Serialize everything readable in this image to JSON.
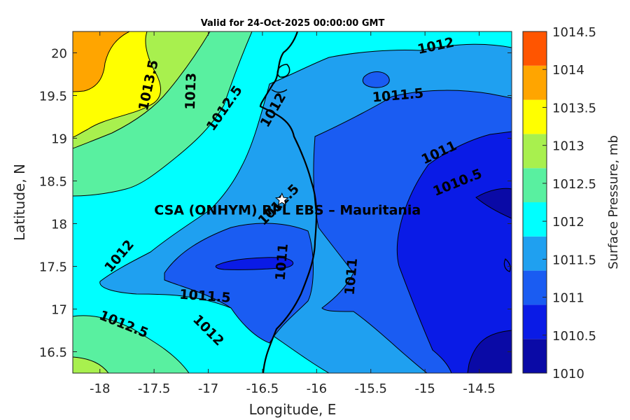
{
  "chart_data": {
    "type": "contour-map",
    "title": "Valid for 24-Oct-2025 00:00:00 GMT",
    "xlabel": "Longitude, E",
    "ylabel": "Latitude, N",
    "xlim": [
      -18.25,
      -14.2
    ],
    "ylim": [
      16.25,
      20.25
    ],
    "xticks": [
      {
        "value": -18,
        "label": "-18"
      },
      {
        "value": -17.5,
        "label": "-17.5"
      },
      {
        "value": -17,
        "label": "-17"
      },
      {
        "value": -16.5,
        "label": "-16.5"
      },
      {
        "value": -16,
        "label": "-16"
      },
      {
        "value": -15.5,
        "label": "-15.5"
      },
      {
        "value": -15,
        "label": "-15"
      },
      {
        "value": -14.5,
        "label": "-14.5"
      }
    ],
    "yticks": [
      {
        "value": 16.5,
        "label": "16.5"
      },
      {
        "value": 17,
        "label": "17"
      },
      {
        "value": 17.5,
        "label": "17.5"
      },
      {
        "value": 18,
        "label": "18"
      },
      {
        "value": 18.5,
        "label": "18.5"
      },
      {
        "value": 19,
        "label": "19"
      },
      {
        "value": 19.5,
        "label": "19.5"
      },
      {
        "value": 20,
        "label": "20"
      }
    ],
    "colorbar": {
      "label": "Surface Pressure, mb",
      "levels": [
        1010,
        1010.5,
        1011,
        1011.5,
        1012,
        1012.5,
        1013,
        1013.5,
        1014,
        1014.5
      ],
      "tick_labels": [
        "1010",
        "1010.5",
        "1011",
        "1011.5",
        "1012",
        "1012.5",
        "1013",
        "1013.5",
        "1014",
        "1014.5"
      ],
      "colors": [
        "#0a0aa6",
        "#0a1be6",
        "#1a5cf2",
        "#1fa0f0",
        "#00ffff",
        "#59f0a0",
        "#a8f04e",
        "#ffff00",
        "#ffa500",
        "#ff5500"
      ]
    },
    "contour_labels": [
      {
        "lon": -17.55,
        "lat": 19.62,
        "text": "1013.5",
        "rot": -78
      },
      {
        "lon": -17.16,
        "lat": 19.55,
        "text": "1013",
        "rot": -88
      },
      {
        "lon": -16.85,
        "lat": 19.35,
        "text": "1012.5",
        "rot": -55
      },
      {
        "lon": -16.4,
        "lat": 19.33,
        "text": "1012",
        "rot": -60
      },
      {
        "lon": -14.9,
        "lat": 20.08,
        "text": "1012",
        "rot": -12
      },
      {
        "lon": -15.25,
        "lat": 19.5,
        "text": "1011.5",
        "rot": -5
      },
      {
        "lon": -14.87,
        "lat": 18.83,
        "text": "1011",
        "rot": -25
      },
      {
        "lon": -14.7,
        "lat": 18.48,
        "text": "1010.5",
        "rot": -22
      },
      {
        "lon": -17.82,
        "lat": 17.62,
        "text": "1012",
        "rot": -50
      },
      {
        "lon": -16.35,
        "lat": 18.22,
        "text": "1011.5",
        "rot": -45
      },
      {
        "lon": -16.32,
        "lat": 17.55,
        "text": "1011",
        "rot": -85
      },
      {
        "lon": -15.68,
        "lat": 17.38,
        "text": "1011",
        "rot": -85
      },
      {
        "lon": -17.03,
        "lat": 17.15,
        "text": "1011.5",
        "rot": 4
      },
      {
        "lon": -17.78,
        "lat": 16.82,
        "text": "1012.5",
        "rot": 22
      },
      {
        "lon": -17.0,
        "lat": 16.75,
        "text": "1012",
        "rot": 45
      }
    ],
    "site": {
      "lon": -16.32,
      "lat": 18.28,
      "label": "CSA (ONHYM) RPL EBS  – Mauritania"
    }
  }
}
